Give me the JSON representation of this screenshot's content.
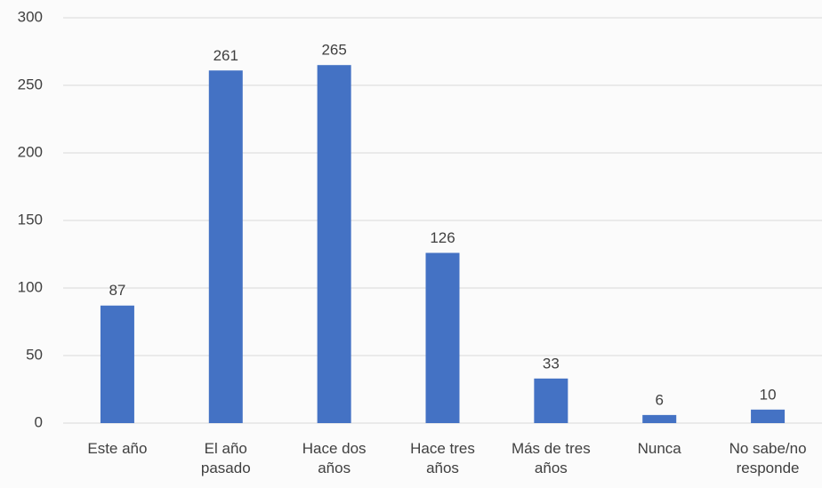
{
  "chart_data": {
    "type": "bar",
    "categories": [
      "Este año",
      "El año pasado",
      "Hace dos años",
      "Hace tres años",
      "Más de tres años",
      "Nunca",
      "No sabe/no responde"
    ],
    "values": [
      87,
      261,
      265,
      126,
      33,
      6,
      10
    ],
    "color": "#4472c4",
    "ylim": [
      0,
      300
    ],
    "yticks": [
      0,
      50,
      100,
      150,
      200,
      250,
      300
    ],
    "grid": true
  }
}
